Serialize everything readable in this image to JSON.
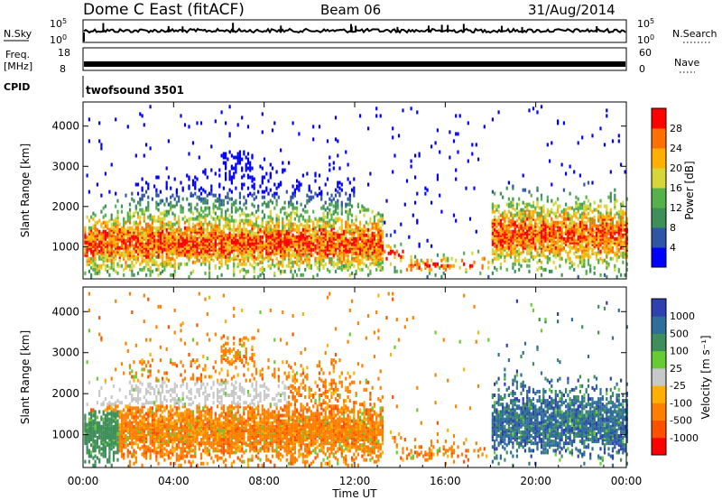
{
  "header": {
    "radar": "Dome C East (fitACF)",
    "beam": "Beam 06",
    "date": "31/Aug/2014"
  },
  "strips": {
    "nsky_label": "N.Sky",
    "nsky_hi": "10^5",
    "nsky_lo": "10^0",
    "nsearch_label": "N.Search",
    "nsearch_hi": "10^5",
    "nsearch_lo": "10^0",
    "freq_label": "Freq.",
    "freq_unit": "[MHz]",
    "freq_hi": "18",
    "freq_lo": "8",
    "nave_label": "Nave",
    "nave_hi": "60",
    "nave_lo": "0",
    "cpid_label": "CPID",
    "cpid_value": "twofsound 3501"
  },
  "chart_data": [
    {
      "type": "heatmap",
      "name_role": "power",
      "ylabel": "Slant Range [km]",
      "y_ticks": [
        "1000",
        "2000",
        "3000",
        "4000"
      ],
      "ylim": [
        200,
        4600
      ],
      "x_ticks": [
        "00:00",
        "04:00",
        "08:00",
        "12:00",
        "16:00",
        "20:00",
        "00:00"
      ],
      "xlim_hours": [
        0,
        24
      ],
      "colorbar": {
        "label": "Power [dB]",
        "ticks": [
          "4",
          "8",
          "12",
          "16",
          "20",
          "24",
          "28"
        ],
        "range": [
          0,
          30
        ],
        "colors": [
          "#0000ff",
          "#2f55a5",
          "#3f8f5a",
          "#55b24a",
          "#d6d63a",
          "#ffb000",
          "#ff7000",
          "#ff0000"
        ]
      }
    },
    {
      "type": "heatmap",
      "name_role": "velocity",
      "ylabel": "Slant Range [km]",
      "y_ticks": [
        "1000",
        "2000",
        "3000",
        "4000"
      ],
      "ylim": [
        200,
        4600
      ],
      "x_ticks": [
        "00:00",
        "04:00",
        "08:00",
        "12:00",
        "16:00",
        "20:00",
        "00:00"
      ],
      "xlim_hours": [
        0,
        24
      ],
      "xlabel": "Time UT",
      "colorbar": {
        "label": "Velocity [m s⁻¹]",
        "ticks": [
          "1000",
          "500",
          "100",
          "25",
          "-25",
          "-100",
          "-500",
          "-1000"
        ],
        "colors": [
          "#2f40b0",
          "#2d6e9a",
          "#3f8f5a",
          "#66cc33",
          "#c8c8c8",
          "#ffb000",
          "#ff8000",
          "#ff5000",
          "#ff0000"
        ]
      }
    }
  ]
}
